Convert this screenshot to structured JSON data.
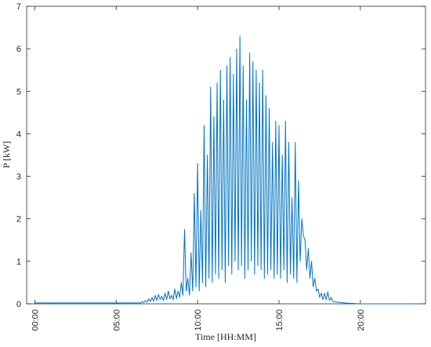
{
  "chart_data": {
    "type": "line",
    "xlabel": "Time [HH:MM]",
    "ylabel": "P [kW]",
    "color": "#0072BD",
    "xlim": [
      -0.5,
      24
    ],
    "ylim": [
      0,
      7
    ],
    "xticks": [
      {
        "value": 0,
        "label": "00:00"
      },
      {
        "value": 5,
        "label": "05:00"
      },
      {
        "value": 10,
        "label": "10:00"
      },
      {
        "value": 15,
        "label": "15:00"
      },
      {
        "value": 20,
        "label": "20:00"
      }
    ],
    "yticks": [
      0,
      1,
      2,
      3,
      4,
      5,
      6,
      7
    ],
    "x": [
      0,
      6.4,
      6.5,
      6.6,
      6.7,
      6.8,
      6.9,
      7.0,
      7.1,
      7.2,
      7.3,
      7.4,
      7.5,
      7.6,
      7.7,
      7.8,
      7.9,
      8.0,
      8.1,
      8.2,
      8.3,
      8.4,
      8.5,
      8.6,
      8.7,
      8.8,
      8.9,
      9.0,
      9.1,
      9.2,
      9.3,
      9.4,
      9.5,
      9.6,
      9.7,
      9.8,
      9.9,
      10.0,
      10.1,
      10.2,
      10.3,
      10.4,
      10.5,
      10.6,
      10.7,
      10.8,
      10.9,
      11.0,
      11.1,
      11.2,
      11.3,
      11.4,
      11.5,
      11.6,
      11.7,
      11.8,
      11.9,
      12.0,
      12.1,
      12.2,
      12.3,
      12.4,
      12.5,
      12.6,
      12.7,
      12.8,
      12.9,
      13.0,
      13.1,
      13.2,
      13.3,
      13.4,
      13.5,
      13.6,
      13.7,
      13.8,
      13.9,
      14.0,
      14.1,
      14.2,
      14.3,
      14.4,
      14.5,
      14.6,
      14.7,
      14.8,
      14.9,
      15.0,
      15.1,
      15.2,
      15.3,
      15.4,
      15.5,
      15.6,
      15.7,
      15.8,
      15.9,
      16.0,
      16.1,
      16.2,
      16.3,
      16.4,
      16.5,
      16.6,
      16.7,
      16.8,
      16.9,
      17.0,
      17.1,
      17.2,
      17.3,
      17.4,
      17.5,
      17.6,
      17.7,
      17.8,
      17.9,
      18.0,
      18.1,
      18.2,
      18.3,
      18.4,
      18.6,
      19.0,
      19.5,
      20.0,
      23.2
    ],
    "values": [
      0.02,
      0.02,
      0.02,
      0.05,
      0.03,
      0.08,
      0.04,
      0.12,
      0.05,
      0.15,
      0.06,
      0.2,
      0.08,
      0.22,
      0.1,
      0.18,
      0.08,
      0.25,
      0.1,
      0.3,
      0.12,
      0.2,
      0.1,
      0.35,
      0.12,
      0.3,
      0.15,
      0.5,
      0.2,
      1.75,
      0.3,
      0.6,
      0.2,
      1.2,
      0.3,
      2.6,
      0.4,
      3.3,
      0.3,
      2.2,
      0.5,
      4.2,
      0.4,
      3.5,
      0.6,
      5.1,
      0.5,
      4.4,
      0.7,
      5.2,
      0.6,
      5.5,
      0.8,
      4.8,
      0.5,
      5.6,
      0.9,
      5.8,
      0.7,
      5.4,
      1.0,
      6.0,
      0.8,
      6.3,
      0.9,
      5.6,
      0.6,
      4.8,
      0.8,
      5.9,
      1.0,
      5.7,
      0.7,
      5.5,
      0.9,
      5.2,
      0.8,
      5.5,
      0.6,
      4.9,
      0.7,
      4.6,
      0.8,
      3.8,
      0.6,
      4.3,
      0.7,
      4.2,
      0.6,
      3.5,
      0.8,
      4.3,
      0.5,
      3.8,
      0.7,
      2.5,
      0.6,
      3.8,
      0.5,
      2.9,
      1.0,
      2.0,
      1.6,
      1.5,
      0.8,
      1.3,
      0.6,
      1.0,
      0.4,
      0.6,
      0.3,
      0.35,
      0.15,
      0.25,
      0.1,
      0.25,
      0.1,
      0.28,
      0.08,
      0.15,
      0.06,
      0.05,
      0.04,
      0.02,
      0.01,
      0,
      0
    ]
  }
}
